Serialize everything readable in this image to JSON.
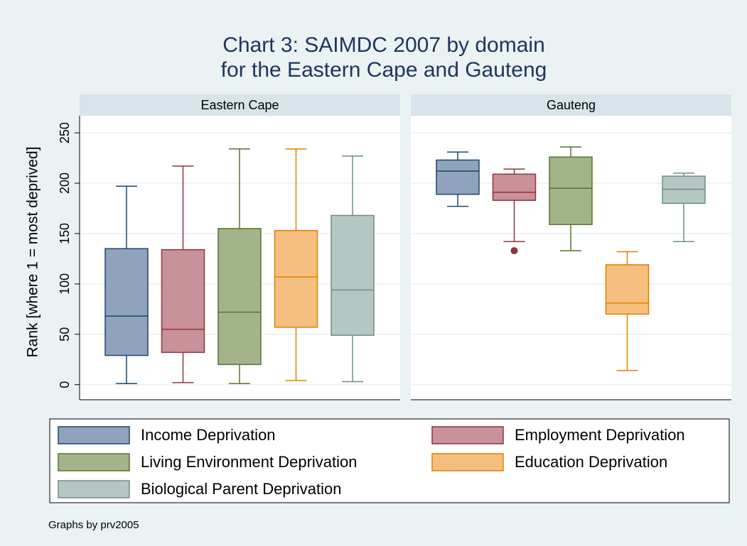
{
  "chart_data": {
    "type": "box",
    "title": [
      "Chart 3: SAIMDC 2007 by domain",
      "for the Eastern Cape and Gauteng"
    ],
    "y_label": "Rank [where 1 = most deprived]",
    "note": "Graphs by prv2005",
    "panels": [
      "Eastern Cape",
      "Gauteng"
    ],
    "ylim": [
      -15,
      267
    ],
    "yticks": [
      0,
      50,
      100,
      150,
      200,
      250
    ],
    "grid": true,
    "series": [
      {
        "name": "Income Deprivation",
        "color": "#8fa3bd",
        "line_color": "#1a476f",
        "stats": [
          {
            "min": 1,
            "q1": 29,
            "median": 68,
            "q3": 135,
            "max": 197,
            "outliers": []
          },
          {
            "min": 177,
            "q1": 189,
            "median": 212,
            "q3": 223,
            "max": 231,
            "outliers": []
          }
        ]
      },
      {
        "name": "Employment Deprivation",
        "color": "#c9919a",
        "line_color": "#90353b",
        "stats": [
          {
            "min": 2,
            "q1": 32,
            "median": 55,
            "q3": 134,
            "max": 217,
            "outliers": []
          },
          {
            "min": 142,
            "q1": 183,
            "median": 191,
            "q3": 209,
            "max": 214,
            "outliers": [
              133
            ]
          }
        ]
      },
      {
        "name": "Living Environment Deprivation",
        "color": "#a3b48b",
        "line_color": "#55752f",
        "stats": [
          {
            "min": 1,
            "q1": 20,
            "median": 72,
            "q3": 155,
            "max": 234,
            "outliers": []
          },
          {
            "min": 133,
            "q1": 159,
            "median": 195,
            "q3": 226,
            "max": 236,
            "outliers": []
          }
        ]
      },
      {
        "name": "Education Deprivation",
        "color": "#f5c07f",
        "line_color": "#e37e00",
        "stats": [
          {
            "min": 4,
            "q1": 57,
            "median": 107,
            "q3": 153,
            "max": 234,
            "outliers": []
          },
          {
            "min": 14,
            "q1": 70,
            "median": 81,
            "q3": 119,
            "max": 132,
            "outliers": []
          }
        ]
      },
      {
        "name": "Biological Parent Deprivation",
        "color": "#b5c7c3",
        "line_color": "#6e8e84",
        "stats": [
          {
            "min": 3,
            "q1": 49,
            "median": 94,
            "q3": 168,
            "max": 227,
            "outliers": []
          },
          {
            "min": 142,
            "q1": 180,
            "median": 194,
            "q3": 207,
            "max": 210,
            "outliers": []
          }
        ]
      }
    ]
  }
}
